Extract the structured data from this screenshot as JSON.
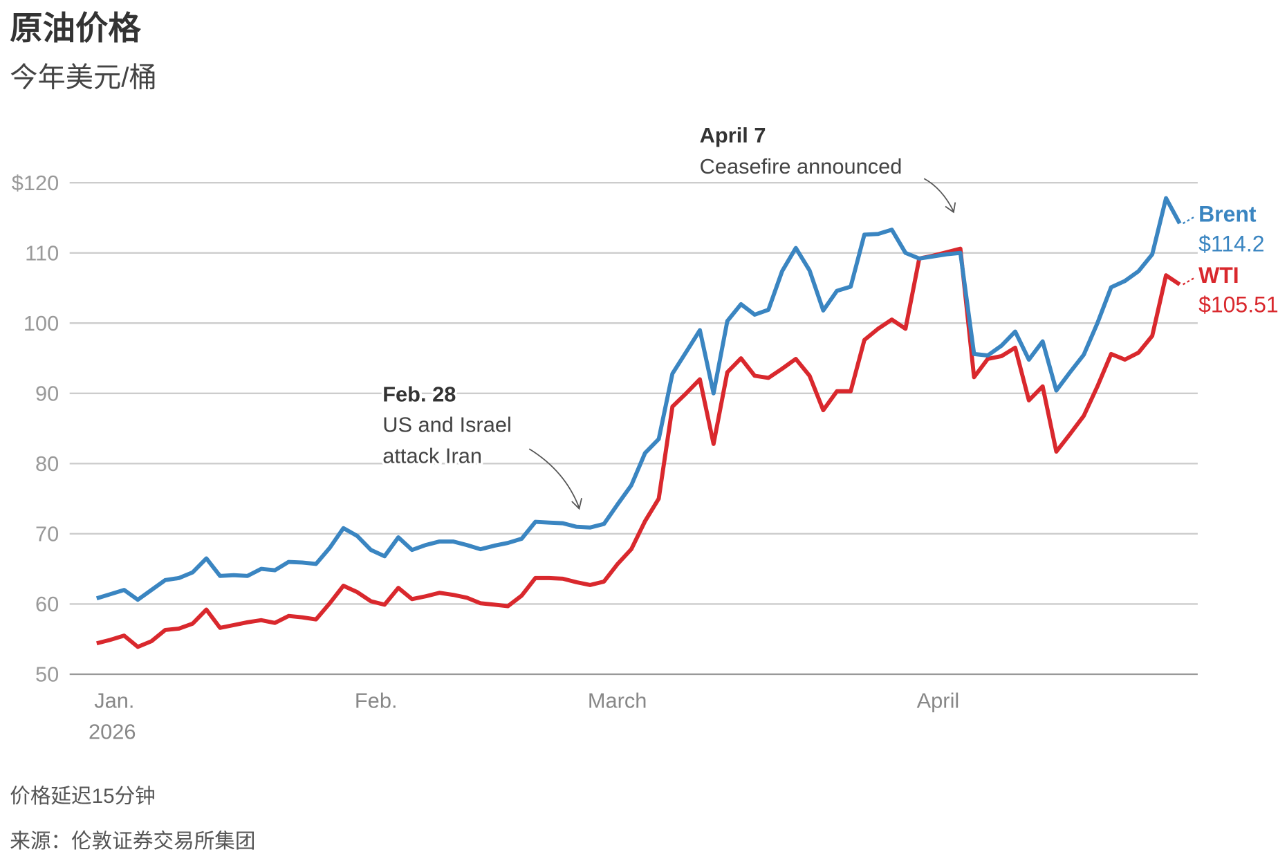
{
  "chart_data": {
    "type": "line",
    "title": "原油价格",
    "subtitle": "今年美元/桶",
    "categories": [
      "Jan.",
      null,
      null,
      null,
      null,
      null,
      null,
      null,
      null,
      null,
      null,
      null,
      null,
      null,
      null,
      null,
      null,
      null,
      null,
      "Feb.",
      null,
      null,
      null,
      null,
      null,
      null,
      null,
      null,
      null,
      null,
      null,
      null,
      null,
      null,
      null,
      null,
      "March",
      null,
      null,
      null,
      null,
      null,
      null,
      null,
      null,
      null,
      null,
      null,
      null,
      null,
      null,
      null,
      null,
      null,
      null,
      null,
      null,
      null,
      null,
      null,
      "April",
      null,
      null,
      null,
      null,
      null,
      null,
      null,
      null,
      null,
      null,
      null,
      null,
      null,
      null,
      null,
      null,
      null,
      null,
      null
    ],
    "year_label": "2026",
    "series": [
      {
        "name": "Brent",
        "color": "#3a85c1",
        "end_value_label": "$114.2",
        "values": [
          60.8,
          61.4,
          62.0,
          60.6,
          62.0,
          63.4,
          63.7,
          64.5,
          66.5,
          64.0,
          64.1,
          64.0,
          65.0,
          64.8,
          66.0,
          65.9,
          65.7,
          68.0,
          70.8,
          69.7,
          67.7,
          66.8,
          69.5,
          67.7,
          68.4,
          68.9,
          68.9,
          68.4,
          67.8,
          68.3,
          68.7,
          69.3,
          71.7,
          71.6,
          71.5,
          71.0,
          70.9,
          71.4,
          74.2,
          76.9,
          81.5,
          83.5,
          92.8,
          95.9,
          99.0,
          90.0,
          100.3,
          102.7,
          101.2,
          101.9,
          107.4,
          110.7,
          107.5,
          101.8,
          104.6,
          105.2,
          112.6,
          112.7,
          113.3,
          110.0,
          109.2,
          109.5,
          109.8,
          110.0,
          95.6,
          95.4,
          96.8,
          98.8,
          94.8,
          97.4,
          90.4,
          93.0,
          95.5,
          100.0,
          105.1,
          106.0,
          107.4,
          109.8,
          117.8,
          114.2
        ]
      },
      {
        "name": "WTI",
        "color": "#d9282d",
        "end_value_label": "$105.51",
        "values": [
          54.4,
          54.9,
          55.5,
          53.9,
          54.7,
          56.3,
          56.5,
          57.2,
          59.2,
          56.6,
          57.0,
          57.4,
          57.7,
          57.3,
          58.3,
          58.1,
          57.8,
          60.1,
          62.6,
          61.7,
          60.4,
          59.9,
          62.3,
          60.7,
          61.1,
          61.6,
          61.3,
          60.9,
          60.1,
          59.9,
          59.7,
          61.2,
          63.7,
          63.7,
          63.6,
          63.1,
          62.7,
          63.2,
          65.7,
          67.8,
          71.8,
          75.0,
          88.1,
          90.0,
          92.0,
          82.8,
          93.0,
          95.0,
          92.5,
          92.2,
          93.5,
          94.9,
          92.5,
          87.6,
          90.3,
          90.3,
          97.6,
          99.2,
          100.5,
          99.2,
          109.2,
          109.6,
          110.1,
          110.6,
          92.3,
          94.9,
          95.3,
          96.5,
          89.0,
          91.0,
          81.7,
          84.2,
          86.8,
          91.0,
          95.6,
          94.8,
          95.8,
          98.2,
          106.8,
          105.51
        ]
      }
    ],
    "ylim": [
      50,
      120
    ],
    "yticks": [
      {
        "value": 120,
        "label": "$120"
      },
      110,
      100,
      90,
      80,
      70,
      60,
      50
    ],
    "grid": true,
    "annotations": [
      {
        "title": "Feb. 28",
        "lines": [
          "US and Israel",
          "attack Iran"
        ]
      },
      {
        "title": "April 7",
        "lines": [
          "Ceasefire announced"
        ]
      }
    ],
    "footnotes": [
      "价格延迟15分钟",
      "来源：伦敦证券交易所集团"
    ]
  }
}
